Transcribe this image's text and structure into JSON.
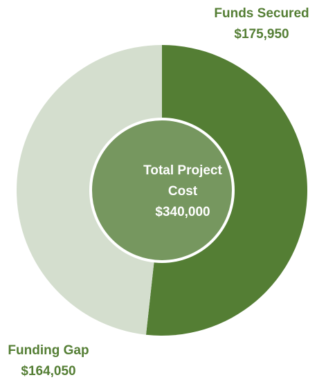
{
  "chart_data": {
    "type": "donut",
    "categories": [
      "Funds Secured",
      "Funding Gap"
    ],
    "values": [
      175950,
      164050
    ],
    "value_labels": [
      "$175,950",
      "$164,050"
    ],
    "colors": [
      "#547e34",
      "#d4dece"
    ],
    "label_color": "#547e34",
    "center_title": "Total Project Cost",
    "total": 340000,
    "total_label": "$340,000",
    "center_color": "#76975f"
  }
}
